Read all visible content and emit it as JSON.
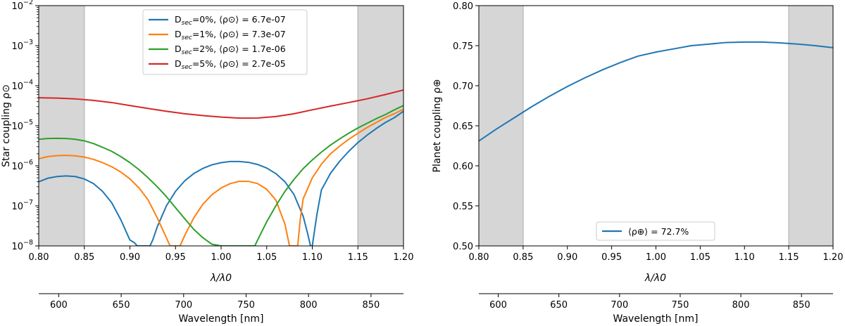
{
  "chart_data": [
    {
      "type": "line",
      "yscale": "log",
      "xlabel": "λ/λ0",
      "ylabel": "Star coupling ρ⊙",
      "secondary_xlabel": "Wavelength [nm]",
      "xlim": [
        0.8,
        1.2
      ],
      "ylim": [
        1e-08,
        0.01
      ],
      "xticks": [
        "0.80",
        "0.85",
        "0.90",
        "0.95",
        "1.00",
        "1.05",
        "1.10",
        "1.15",
        "1.20"
      ],
      "yticks": [
        {
          "base": "10",
          "exp": "−8",
          "value": 1e-08
        },
        {
          "base": "10",
          "exp": "−7",
          "value": 1e-07
        },
        {
          "base": "10",
          "exp": "−6",
          "value": 1e-06
        },
        {
          "base": "10",
          "exp": "−5",
          "value": 1e-05
        },
        {
          "base": "10",
          "exp": "−4",
          "value": 0.0001
        },
        {
          "base": "10",
          "exp": "−3",
          "value": 0.001
        },
        {
          "base": "10",
          "exp": "−2",
          "value": 0.01
        }
      ],
      "secondary_xticks": [
        "600",
        "650",
        "700",
        "750",
        "800",
        "850"
      ],
      "secondary_xtick_values": [
        600,
        650,
        700,
        750,
        800,
        850
      ],
      "wavelength_range_nm": [
        584,
        876
      ],
      "shaded_bands": [
        [
          0.8,
          0.85
        ],
        [
          1.15,
          1.2
        ]
      ],
      "legend_position": "top-center",
      "series": [
        {
          "name": "Dsec=0%",
          "label_main": "D",
          "label_sub": "sec",
          "label_rest": "=0%, ⟨ρ⊙⟩ = 6.7e-07",
          "color": "#1f77b4",
          "x": [
            0.8,
            0.81,
            0.82,
            0.83,
            0.84,
            0.85,
            0.86,
            0.87,
            0.88,
            0.89,
            0.9,
            0.905,
            0.908,
            0.922,
            0.925,
            0.93,
            0.94,
            0.95,
            0.96,
            0.97,
            0.98,
            0.99,
            1.0,
            1.01,
            1.02,
            1.03,
            1.04,
            1.05,
            1.06,
            1.07,
            1.08,
            1.09,
            1.095,
            1.098,
            1.1,
            1.105,
            1.11,
            1.12,
            1.13,
            1.14,
            1.15,
            1.16,
            1.17,
            1.18,
            1.19,
            1.2
          ],
          "y": [
            4e-07,
            4.9e-07,
            5.4e-07,
            5.6e-07,
            5.4e-07,
            4.7e-07,
            3.6e-07,
            2.3e-07,
            1.2e-07,
            4.5e-08,
            1.4e-08,
            1.2e-08,
            1e-08,
            1e-08,
            1.4e-08,
            3e-08,
            1e-07,
            2.3e-07,
            4.2e-07,
            6.4e-07,
            8.6e-07,
            1.06e-06,
            1.2e-06,
            1.28e-06,
            1.28e-06,
            1.22e-06,
            1.08e-06,
            8.8e-07,
            6.4e-07,
            4e-07,
            1.9e-07,
            5.5e-08,
            2e-08,
            1e-08,
            1e-08,
            6e-08,
            2.5e-07,
            6.5e-07,
            1.3e-06,
            2.3e-06,
            3.8e-06,
            5.8e-06,
            8.5e-06,
            1.2e-05,
            1.6e-05,
            2.3e-05
          ]
        },
        {
          "name": "Dsec=1%",
          "label_main": "D",
          "label_sub": "sec",
          "label_rest": "=1%, ⟨ρ⊙⟩ = 7.3e-07",
          "color": "#ff7f0e",
          "x": [
            0.8,
            0.81,
            0.82,
            0.83,
            0.84,
            0.85,
            0.86,
            0.87,
            0.88,
            0.89,
            0.9,
            0.91,
            0.92,
            0.93,
            0.94,
            0.944,
            0.955,
            0.96,
            0.97,
            0.98,
            0.99,
            1.0,
            1.01,
            1.02,
            1.03,
            1.04,
            1.05,
            1.06,
            1.07,
            1.075,
            1.084,
            1.087,
            1.09,
            1.1,
            1.11,
            1.12,
            1.13,
            1.14,
            1.15,
            1.16,
            1.17,
            1.18,
            1.19,
            1.2
          ],
          "y": [
            1.5e-06,
            1.7e-06,
            1.8e-06,
            1.82e-06,
            1.78e-06,
            1.65e-06,
            1.45e-06,
            1.2e-06,
            9.5e-07,
            7e-07,
            4.7e-07,
            2.8e-07,
            1.4e-07,
            5e-08,
            1.6e-08,
            1e-08,
            1e-08,
            1.8e-08,
            5e-08,
            1.1e-07,
            1.9e-07,
            2.8e-07,
            3.6e-07,
            4.1e-07,
            4.1e-07,
            3.6e-07,
            2.6e-07,
            1.4e-07,
            3.5e-08,
            1e-08,
            1e-08,
            5e-08,
            1.5e-07,
            5e-07,
            1.1e-06,
            2e-06,
            3.1e-06,
            4.6e-06,
            6.5e-06,
            9e-06,
            1.2e-05,
            1.6e-05,
            2e-05,
            2.6e-05
          ]
        },
        {
          "name": "Dsec=2%",
          "label_main": "D",
          "label_sub": "sec",
          "label_rest": "=2%, ⟨ρ⊙⟩ = 1.7e-06",
          "color": "#2ca02c",
          "x": [
            0.8,
            0.81,
            0.82,
            0.83,
            0.84,
            0.85,
            0.86,
            0.87,
            0.88,
            0.89,
            0.9,
            0.91,
            0.92,
            0.93,
            0.94,
            0.95,
            0.96,
            0.97,
            0.98,
            0.99,
            1.0,
            1.002,
            1.037,
            1.04,
            1.05,
            1.06,
            1.07,
            1.08,
            1.09,
            1.1,
            1.11,
            1.12,
            1.13,
            1.14,
            1.15,
            1.16,
            1.17,
            1.18,
            1.19,
            1.2
          ],
          "y": [
            4.6e-06,
            4.8e-06,
            4.85e-06,
            4.8e-06,
            4.6e-06,
            4.2e-06,
            3.6e-06,
            2.9e-06,
            2.3e-06,
            1.7e-06,
            1.2e-06,
            8e-07,
            5e-07,
            3e-07,
            1.7e-07,
            9e-08,
            4.8e-08,
            2.6e-08,
            1.6e-08,
            1.1e-08,
            1e-08,
            1e-08,
            1e-08,
            1.4e-08,
            4e-08,
            1e-07,
            2.3e-07,
            4.6e-07,
            8.5e-07,
            1.4e-06,
            2.2e-06,
            3.3e-06,
            4.7e-06,
            6.5e-06,
            8.8e-06,
            1.15e-05,
            1.5e-05,
            1.9e-05,
            2.5e-05,
            3.2e-05
          ]
        },
        {
          "name": "Dsec=5%",
          "label_main": "D",
          "label_sub": "sec",
          "label_rest": "=5%, ⟨ρ⊙⟩ = 2.7e-05",
          "color": "#d62728",
          "x": [
            0.8,
            0.82,
            0.84,
            0.86,
            0.88,
            0.9,
            0.92,
            0.94,
            0.96,
            0.98,
            1.0,
            1.02,
            1.03,
            1.04,
            1.06,
            1.08,
            1.1,
            1.12,
            1.14,
            1.16,
            1.18,
            1.2
          ],
          "y": [
            5e-05,
            4.9e-05,
            4.7e-05,
            4.3e-05,
            3.8e-05,
            3.2e-05,
            2.7e-05,
            2.3e-05,
            2e-05,
            1.8e-05,
            1.65e-05,
            1.55e-05,
            1.55e-05,
            1.56e-05,
            1.7e-05,
            2e-05,
            2.5e-05,
            3.1e-05,
            3.8e-05,
            4.7e-05,
            6e-05,
            7.8e-05
          ]
        }
      ]
    },
    {
      "type": "line",
      "yscale": "linear",
      "xlabel": "λ/λ0",
      "ylabel": "Planet coupling ρ⊕",
      "secondary_xlabel": "Wavelength [nm]",
      "xlim": [
        0.8,
        1.2
      ],
      "ylim": [
        0.5,
        0.8
      ],
      "xticks": [
        "0.80",
        "0.85",
        "0.90",
        "0.95",
        "1.00",
        "1.05",
        "1.10",
        "1.15",
        "1.20"
      ],
      "yticks": [
        "0.50",
        "0.55",
        "0.60",
        "0.65",
        "0.70",
        "0.75",
        "0.80"
      ],
      "secondary_xticks": [
        "600",
        "650",
        "700",
        "750",
        "800",
        "850"
      ],
      "secondary_xtick_values": [
        600,
        650,
        700,
        750,
        800,
        850
      ],
      "wavelength_range_nm": [
        584,
        876
      ],
      "shaded_bands": [
        [
          0.8,
          0.85
        ],
        [
          1.15,
          1.2
        ]
      ],
      "legend_position": "lower-center",
      "series": [
        {
          "name": "⟨ρ⊕⟩ = 72.7%",
          "color": "#1f77b4",
          "x": [
            0.8,
            0.82,
            0.84,
            0.86,
            0.88,
            0.9,
            0.92,
            0.94,
            0.96,
            0.98,
            1.0,
            1.02,
            1.04,
            1.06,
            1.08,
            1.1,
            1.12,
            1.14,
            1.16,
            1.18,
            1.2
          ],
          "y": [
            0.631,
            0.646,
            0.66,
            0.674,
            0.687,
            0.699,
            0.71,
            0.72,
            0.729,
            0.737,
            0.742,
            0.746,
            0.75,
            0.752,
            0.754,
            0.7545,
            0.7545,
            0.7535,
            0.752,
            0.75,
            0.7475
          ]
        }
      ]
    }
  ]
}
